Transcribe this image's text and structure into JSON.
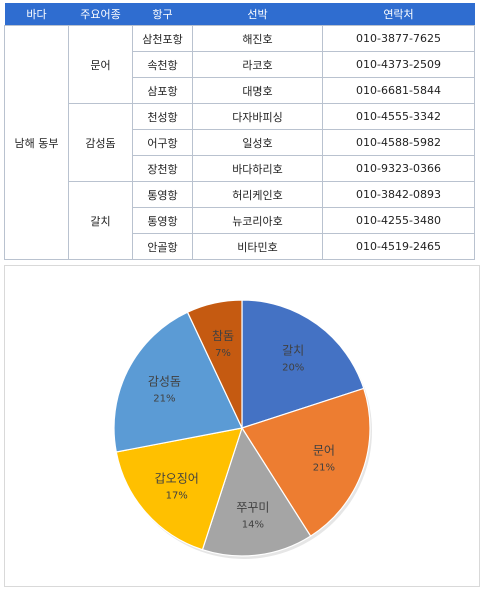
{
  "table": {
    "headers": [
      "바다",
      "주요어종",
      "항구",
      "선박",
      "연락처"
    ],
    "sea": "남해 동부",
    "groups": [
      {
        "species": "문어",
        "rows": [
          {
            "port": "삼천포항",
            "ship": "해진호",
            "contact": "010-3877-7625"
          },
          {
            "port": "속천항",
            "ship": "라코호",
            "contact": "010-4373-2509"
          },
          {
            "port": "삼포항",
            "ship": "대명호",
            "contact": "010-6681-5844"
          }
        ]
      },
      {
        "species": "감성돔",
        "rows": [
          {
            "port": "천성항",
            "ship": "다자바피싱",
            "contact": "010-4555-3342"
          },
          {
            "port": "어구항",
            "ship": "일성호",
            "contact": "010-4588-5982"
          },
          {
            "port": "장천항",
            "ship": "바다하리호",
            "contact": "010-9323-0366"
          }
        ]
      },
      {
        "species": "갈치",
        "rows": [
          {
            "port": "통영항",
            "ship": "허리케인호",
            "contact": "010-3842-0893"
          },
          {
            "port": "통영항",
            "ship": "뉴코리아호",
            "contact": "010-4255-3480"
          },
          {
            "port": "안골항",
            "ship": "비타민호",
            "contact": "010-4519-2465"
          }
        ]
      }
    ]
  },
  "chart_data": {
    "type": "pie",
    "title": "",
    "slices": [
      {
        "label": "갈치",
        "value": 20,
        "display": "20%",
        "color": "#4472c4"
      },
      {
        "label": "문어",
        "value": 21,
        "display": "21%",
        "color": "#ed7d31"
      },
      {
        "label": "쭈꾸미",
        "value": 14,
        "display": "14%",
        "color": "#a5a5a5"
      },
      {
        "label": "갑오징어",
        "value": 17,
        "display": "17%",
        "color": "#ffc000"
      },
      {
        "label": "감성돔",
        "value": 21,
        "display": "21%",
        "color": "#5b9bd5"
      },
      {
        "label": "참돔",
        "value": 7,
        "display": "7%",
        "color": "#c55a11"
      }
    ],
    "start": "top, clockwise",
    "legend": "none",
    "labels": "inside"
  }
}
